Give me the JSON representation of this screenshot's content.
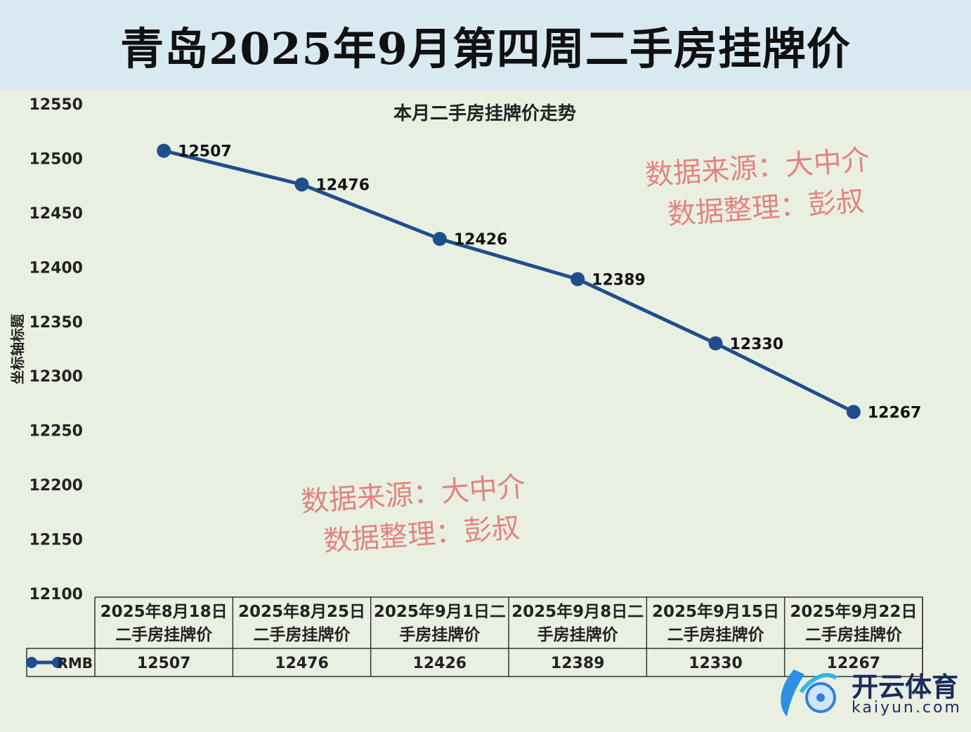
{
  "header": {
    "title": "青岛2025年9月第四周二手房挂牌价"
  },
  "chart_data": {
    "type": "line",
    "title": "本月二手房挂牌价走势",
    "ylabel": "坐标轴标题",
    "xlabel": "",
    "ylim": [
      12100,
      12550
    ],
    "yticks": [
      12100,
      12150,
      12200,
      12250,
      12300,
      12350,
      12400,
      12450,
      12500,
      12550
    ],
    "categories": [
      "2025年8月18日二手房挂牌价",
      "2025年8月25日二手房挂牌价",
      "2025年9月1日二手房挂牌价",
      "2025年9月8日二手房挂牌价",
      "2025年9月15日二手房挂牌价",
      "2025年9月22日二手房挂牌价"
    ],
    "category_lines": [
      [
        "2025年8月18日",
        "二手房挂牌价"
      ],
      [
        "2025年8月25日",
        "二手房挂牌价"
      ],
      [
        "2025年9月1日二",
        "手房挂牌价"
      ],
      [
        "2025年9月8日二",
        "手房挂牌价"
      ],
      [
        "2025年9月15日",
        "二手房挂牌价"
      ],
      [
        "2025年9月22日",
        "二手房挂牌价"
      ]
    ],
    "series": [
      {
        "name": "RMB",
        "values": [
          12507,
          12476,
          12426,
          12389,
          12330,
          12267
        ],
        "color": "#1f4e8c"
      }
    ],
    "legend": "data-table",
    "grid": false
  },
  "watermarks": [
    {
      "line1": "数据来源：大中介",
      "line2": "数据整理：彭叔"
    },
    {
      "line1": "数据来源：大中介",
      "line2": "数据整理：彭叔"
    }
  ],
  "logo": {
    "cn": "开云体育",
    "en": "kaiyun.com"
  }
}
